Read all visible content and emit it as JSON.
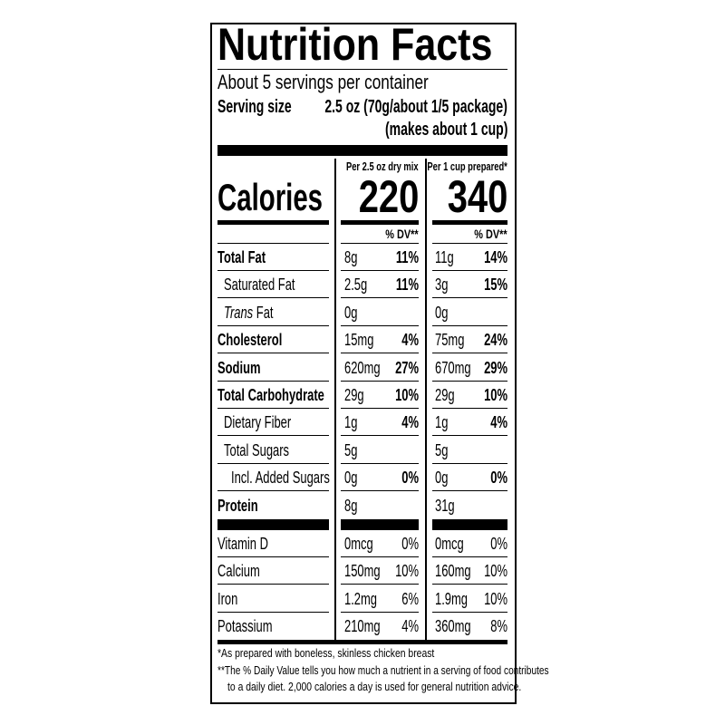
{
  "title": "Nutrition Facts",
  "servings": "About 5 servings per container",
  "serving_size_label": "Serving size",
  "serving_size_value": "2.5 oz (70g/about 1/5 package)",
  "serving_size_note": "(makes about 1 cup)",
  "calories_label": "Calories",
  "columns": [
    {
      "header": "Per 2.5 oz dry mix",
      "calories": "220",
      "dv_header": "% DV**"
    },
    {
      "header": "Per 1 cup prepared*",
      "calories": "340",
      "dv_header": "% DV**"
    }
  ],
  "nutrients": [
    {
      "name": "Total Fat",
      "bold": true,
      "indent": 0,
      "values": [
        [
          "8g",
          "11%"
        ],
        [
          "11g",
          "14%"
        ]
      ]
    },
    {
      "name": "Saturated Fat",
      "bold": false,
      "indent": 1,
      "values": [
        [
          "2.5g",
          "11%"
        ],
        [
          "3g",
          "15%"
        ]
      ]
    },
    {
      "name": "Trans Fat",
      "italic_prefix": "Trans",
      "bold": false,
      "indent": 1,
      "values": [
        [
          "0g",
          ""
        ],
        [
          "0g",
          ""
        ]
      ]
    },
    {
      "name": "Cholesterol",
      "bold": true,
      "indent": 0,
      "values": [
        [
          "15mg",
          "4%"
        ],
        [
          "75mg",
          "24%"
        ]
      ]
    },
    {
      "name": "Sodium",
      "bold": true,
      "indent": 0,
      "values": [
        [
          "620mg",
          "27%"
        ],
        [
          "670mg",
          "29%"
        ]
      ]
    },
    {
      "name": "Total Carbohydrate",
      "bold": true,
      "indent": 0,
      "values": [
        [
          "29g",
          "10%"
        ],
        [
          "29g",
          "10%"
        ]
      ]
    },
    {
      "name": "Dietary Fiber",
      "bold": false,
      "indent": 1,
      "values": [
        [
          "1g",
          "4%"
        ],
        [
          "1g",
          "4%"
        ]
      ]
    },
    {
      "name": "Total Sugars",
      "bold": false,
      "indent": 1,
      "values": [
        [
          "5g",
          ""
        ],
        [
          "5g",
          ""
        ]
      ]
    },
    {
      "name": "Incl. Added Sugars",
      "bold": false,
      "indent": 2,
      "values": [
        [
          "0g",
          "0%"
        ],
        [
          "0g",
          "0%"
        ]
      ]
    },
    {
      "name": "Protein",
      "bold": true,
      "indent": 0,
      "values": [
        [
          "8g",
          ""
        ],
        [
          "31g",
          ""
        ]
      ]
    }
  ],
  "vitamins": [
    {
      "name": "Vitamin D",
      "values": [
        [
          "0mcg",
          "0%"
        ],
        [
          "0mcg",
          "0%"
        ]
      ]
    },
    {
      "name": "Calcium",
      "values": [
        [
          "150mg",
          "10%"
        ],
        [
          "160mg",
          "10%"
        ]
      ]
    },
    {
      "name": "Iron",
      "values": [
        [
          "1.2mg",
          "6%"
        ],
        [
          "1.9mg",
          "10%"
        ]
      ]
    },
    {
      "name": "Potassium",
      "values": [
        [
          "210mg",
          "4%"
        ],
        [
          "360mg",
          "8%"
        ]
      ]
    }
  ],
  "footnotes": [
    "*As prepared with boneless, skinless chicken breast",
    "**The % Daily Value tells you how much a nutrient in a serving of food contributes",
    "to a daily diet. 2,000 calories a day is used for general nutrition advice."
  ]
}
